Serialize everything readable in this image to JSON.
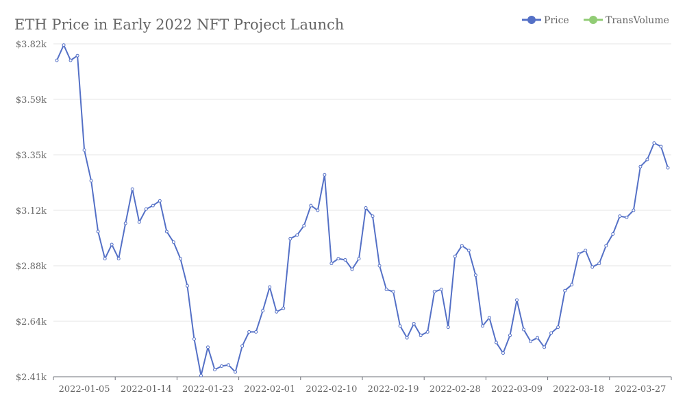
{
  "chart_data": {
    "type": "line",
    "title": "ETH Price in Early 2022 NFT Project Launch",
    "xlabel": "",
    "ylabel": "",
    "y_ticks": [
      "$2.41k",
      "$2.64k",
      "$2.88k",
      "$3.12k",
      "$3.35k",
      "$3.59k",
      "$3.82k"
    ],
    "ylim": [
      2410,
      3820
    ],
    "x_tick_labels": [
      "2022-01-05",
      "2022-01-14",
      "2022-01-23",
      "2022-02-01",
      "2022-02-10",
      "2022-02-19",
      "2022-02-28",
      "2022-03-09",
      "2022-03-18",
      "2022-03-27"
    ],
    "x_start": "2022-01-01",
    "x_end": "2022-03-31",
    "grid": true,
    "legend_position": "top-right",
    "legend": [
      {
        "name": "Price",
        "color": "#5470c6"
      },
      {
        "name": "TransVolume",
        "color": "#91cc75"
      }
    ],
    "series": [
      {
        "name": "Price",
        "color": "#5470c6",
        "x": [
          "2022-01-01",
          "2022-01-02",
          "2022-01-03",
          "2022-01-04",
          "2022-01-05",
          "2022-01-06",
          "2022-01-07",
          "2022-01-08",
          "2022-01-09",
          "2022-01-10",
          "2022-01-11",
          "2022-01-12",
          "2022-01-13",
          "2022-01-14",
          "2022-01-15",
          "2022-01-16",
          "2022-01-17",
          "2022-01-18",
          "2022-01-19",
          "2022-01-20",
          "2022-01-21",
          "2022-01-22",
          "2022-01-23",
          "2022-01-24",
          "2022-01-25",
          "2022-01-26",
          "2022-01-27",
          "2022-01-28",
          "2022-01-29",
          "2022-01-30",
          "2022-01-31",
          "2022-02-01",
          "2022-02-02",
          "2022-02-03",
          "2022-02-04",
          "2022-02-05",
          "2022-02-06",
          "2022-02-07",
          "2022-02-08",
          "2022-02-09",
          "2022-02-10",
          "2022-02-11",
          "2022-02-12",
          "2022-02-13",
          "2022-02-14",
          "2022-02-15",
          "2022-02-16",
          "2022-02-17",
          "2022-02-18",
          "2022-02-19",
          "2022-02-20",
          "2022-02-21",
          "2022-02-22",
          "2022-02-23",
          "2022-02-24",
          "2022-02-25",
          "2022-02-26",
          "2022-02-27",
          "2022-02-28",
          "2022-03-01",
          "2022-03-02",
          "2022-03-03",
          "2022-03-04",
          "2022-03-05",
          "2022-03-06",
          "2022-03-07",
          "2022-03-08",
          "2022-03-09",
          "2022-03-10",
          "2022-03-11",
          "2022-03-12",
          "2022-03-13",
          "2022-03-14",
          "2022-03-15",
          "2022-03-16",
          "2022-03-17",
          "2022-03-18",
          "2022-03-19",
          "2022-03-20",
          "2022-03-21",
          "2022-03-22",
          "2022-03-23",
          "2022-03-24",
          "2022-03-25",
          "2022-03-26",
          "2022-03-27",
          "2022-03-28",
          "2022-03-29",
          "2022-03-30",
          "2022-03-31"
        ],
        "values": [
          3750,
          3815,
          3750,
          3770,
          3370,
          3240,
          3025,
          2910,
          2970,
          2910,
          3060,
          3205,
          3065,
          3120,
          3135,
          3155,
          3025,
          2980,
          2910,
          2795,
          2570,
          2415,
          2535,
          2440,
          2455,
          2460,
          2430,
          2540,
          2600,
          2600,
          2690,
          2790,
          2685,
          2700,
          2995,
          3010,
          3050,
          3135,
          3115,
          3265,
          2890,
          2910,
          2905,
          2865,
          2910,
          3125,
          3090,
          2880,
          2780,
          2770,
          2625,
          2575,
          2635,
          2585,
          2600,
          2770,
          2780,
          2620,
          2920,
          2965,
          2945,
          2840,
          2625,
          2660,
          2555,
          2510,
          2585,
          2735,
          2610,
          2560,
          2575,
          2535,
          2595,
          2620,
          2775,
          2800,
          2930,
          2945,
          2875,
          2890,
          2965,
          3015,
          3090,
          3085,
          3115,
          3300,
          3330,
          3400,
          3385,
          3295
        ]
      }
    ]
  }
}
